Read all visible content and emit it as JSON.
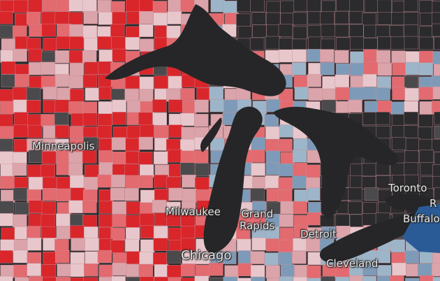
{
  "map": {
    "title": "",
    "colors": {
      "background": "#2b2b2d",
      "lakes": "#262628",
      "strong_red": "#d9262b",
      "medium_red": "#e36a6f",
      "light_red": "#dba3aa",
      "pale_red": "#e8c7cc",
      "light_blue": "#9db5c9",
      "medium_blue": "#7d9bb8",
      "dark_blue": "#2a5b96",
      "no_data": "#4a4a4c",
      "county_border": "#c98f96"
    },
    "cities": {
      "minneapolis": "Minneapolis",
      "milwaukee": "Milwaukee",
      "grand_rapids_line1": "Grand",
      "grand_rapids_line2": "Rapids",
      "detroit": "Detroit",
      "chicago": "Chicago",
      "cleveland": "Cleveland",
      "toronto": "Toronto",
      "buffalo": "Buffalo",
      "partial_label": "R"
    }
  }
}
